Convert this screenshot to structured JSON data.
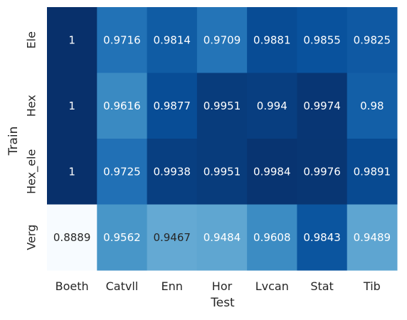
{
  "chart_data": {
    "type": "heatmap",
    "title": "",
    "xlabel": "Test",
    "ylabel": "Train",
    "x_categories": [
      "Boeth",
      "Catvll",
      "Enn",
      "Hor",
      "Lvcan",
      "Stat",
      "Tib"
    ],
    "y_categories": [
      "Ele",
      "Hex",
      "Hex_ele",
      "Verg"
    ],
    "values": [
      [
        "1",
        "0.9716",
        "0.9814",
        "0.9709",
        "0.9881",
        "0.9855",
        "0.9825"
      ],
      [
        "1",
        "0.9616",
        "0.9877",
        "0.9951",
        "0.994",
        "0.9974",
        "0.98"
      ],
      [
        "1",
        "0.9725",
        "0.9938",
        "0.9951",
        "0.9984",
        "0.9976",
        "0.9891"
      ],
      [
        "0.8889",
        "0.9562",
        "0.9467",
        "0.9484",
        "0.9608",
        "0.9843",
        "0.9489"
      ]
    ],
    "colormap": "Blues",
    "colorbar": false,
    "grid": false
  }
}
